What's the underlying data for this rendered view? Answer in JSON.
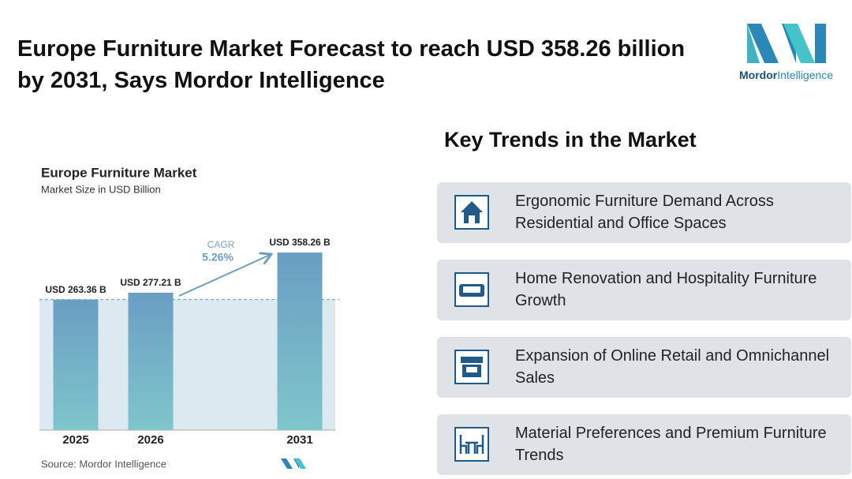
{
  "header": {
    "title": "Europe Furniture Market Forecast to reach USD 358.26 billion by 2031, Says Mordor Intelligence"
  },
  "logo": {
    "brand": "Mordor",
    "suffix": "Intelligence"
  },
  "chart_data": {
    "type": "bar",
    "title": "Europe Furniture Market",
    "subtitle": "Market Size in USD Billion",
    "categories": [
      "2025",
      "2026",
      "2031"
    ],
    "values": [
      263.36,
      277.21,
      358.26
    ],
    "value_labels": [
      "USD 263.36 B",
      "USD 277.21 B",
      "USD 358.26 B"
    ],
    "color": "#6a9ec2",
    "annotation": {
      "label": "CAGR",
      "value": "5.26%"
    },
    "source": "Source: Mordor Intelligence"
  },
  "trends": {
    "title": "Key Trends in the Market",
    "items": [
      "Ergonomic Furniture Demand Across Residential and Office Spaces",
      "Home Renovation and Hospitality Furniture Growth",
      "Expansion of Online Retail and Omnichannel Sales",
      "Material Preferences and Premium Furniture Trends"
    ]
  }
}
